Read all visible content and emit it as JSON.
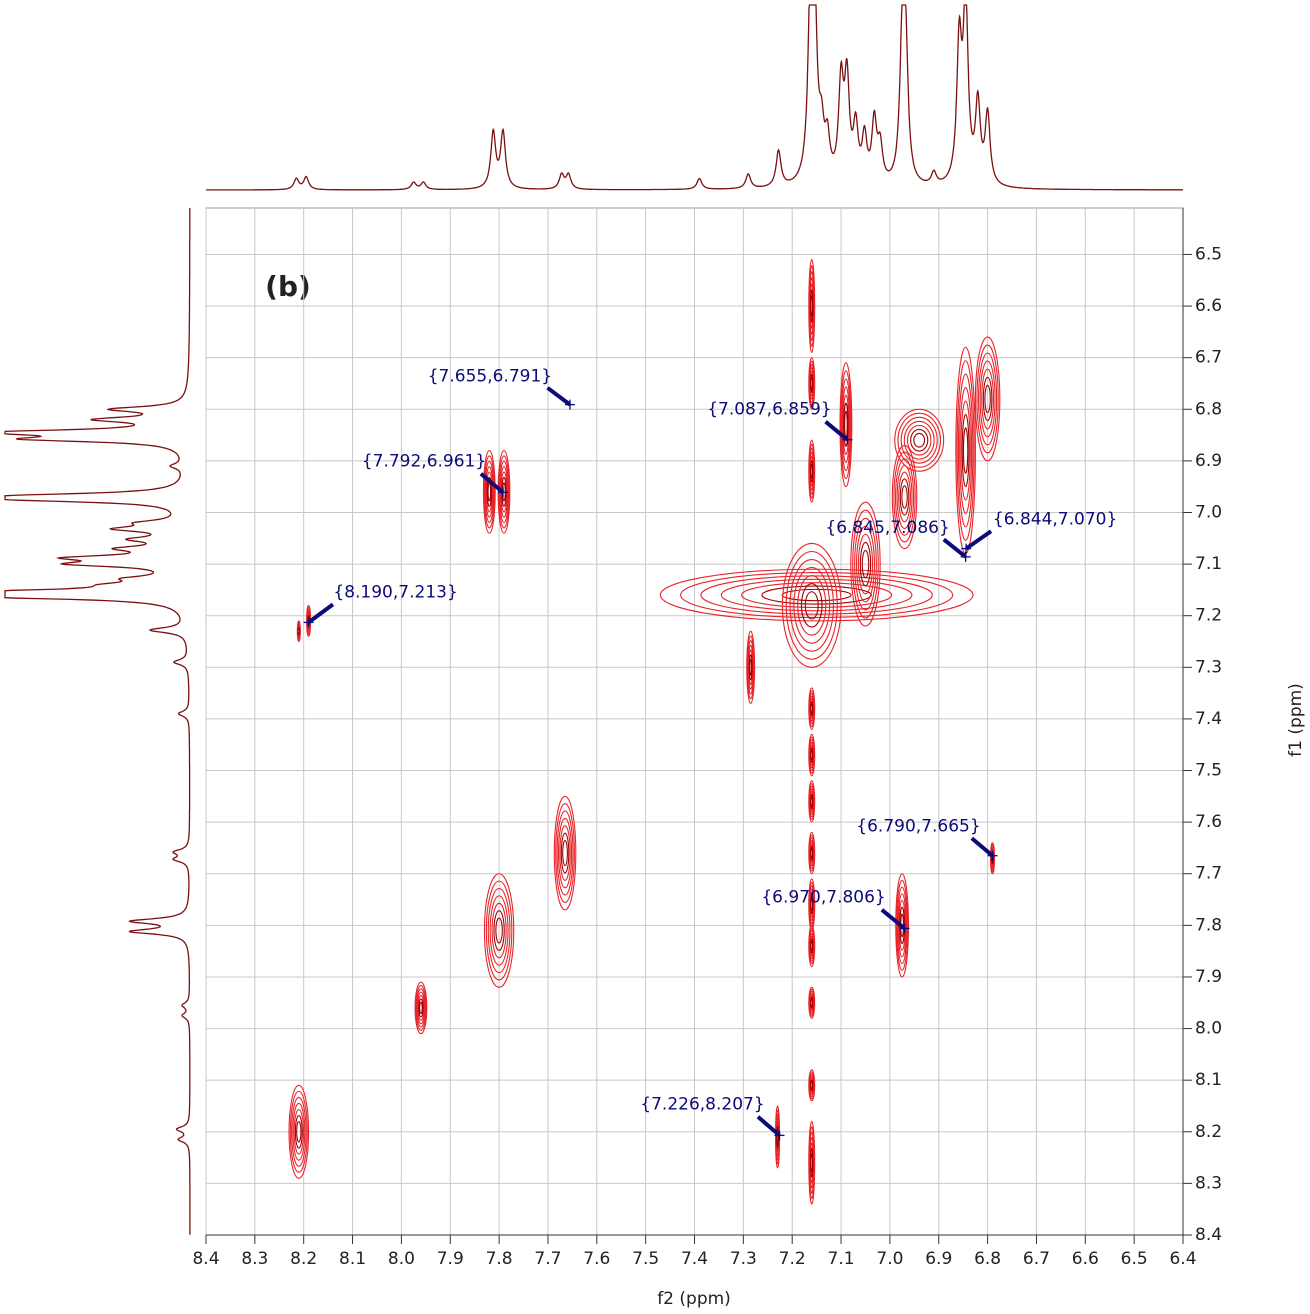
{
  "chart_data": {
    "type": "contour2d",
    "panel_label": "(b)",
    "x_label": "f2 (ppm)",
    "y_label": "f1 (ppm)",
    "xlim": [
      8.4,
      6.4
    ],
    "ylim": [
      6.41,
      8.4
    ],
    "xticks": [
      8.4,
      8.3,
      8.2,
      8.1,
      {
        "value": 8.0,
        "label": "8.0"
      },
      7.9,
      7.8,
      7.7,
      7.6,
      7.5,
      7.4,
      7.3,
      7.2,
      7.1,
      {
        "value": 7.0,
        "label": "7.0"
      },
      6.9,
      6.8,
      6.7,
      6.6,
      6.5,
      6.4
    ],
    "yticks": [
      6.5,
      6.6,
      6.7,
      6.8,
      6.9,
      {
        "value": 7.0,
        "label": "7.0"
      },
      7.1,
      7.2,
      7.3,
      7.4,
      7.5,
      7.6,
      7.7,
      7.8,
      7.9,
      {
        "value": 8.0,
        "label": "8.0"
      },
      8.1,
      8.2,
      8.3,
      8.4
    ],
    "grid": true,
    "contour_color": "#e8242a",
    "projection_color": "#7a1010",
    "annotation_color": "#0b0b7a",
    "projection": {
      "x": [
        8.215,
        8.195,
        7.975,
        7.955,
        7.812,
        7.792,
        7.672,
        7.658,
        7.39,
        7.29,
        7.228,
        7.162,
        7.155,
        7.14,
        7.128,
        7.1,
        7.088,
        7.07,
        7.052,
        7.032,
        7.02,
        6.975,
        6.968,
        6.91,
        6.858,
        6.845,
        6.82,
        6.8
      ],
      "intensity": [
        6,
        7,
        4,
        4,
        31,
        31,
        8,
        8,
        6,
        8,
        20,
        100,
        100,
        24,
        22,
        54,
        55,
        30,
        25,
        34,
        20,
        70,
        75,
        7,
        76,
        100,
        44,
        39
      ]
    },
    "contours": {
      "x": [
        7.82,
        7.79,
        8.19,
        8.21,
        8.21,
        7.8,
        7.665,
        7.96,
        6.975,
        6.79,
        7.23,
        7.15,
        7.16,
        6.845,
        6.8,
        7.09,
        6.97,
        7.05,
        6.94,
        7.285,
        7.16,
        7.16,
        7.16,
        7.16,
        7.16,
        7.16,
        7.16,
        7.16,
        7.16,
        7.16,
        7.16,
        7.16
      ],
      "y": [
        6.96,
        6.96,
        7.21,
        7.23,
        8.2,
        7.81,
        7.66,
        7.96,
        7.8,
        7.67,
        8.21,
        7.16,
        7.18,
        6.88,
        6.78,
        6.83,
        6.97,
        7.1,
        6.86,
        7.3,
        6.6,
        6.75,
        6.92,
        7.38,
        7.47,
        7.56,
        7.66,
        7.76,
        7.84,
        7.95,
        8.11,
        8.26
      ],
      "dx": [
        0.012,
        0.012,
        0.004,
        0.003,
        0.02,
        0.03,
        0.022,
        0.012,
        0.013,
        0.004,
        0.004,
        0.32,
        0.06,
        0.02,
        0.025,
        0.012,
        0.025,
        0.03,
        0.05,
        0.008,
        0.006,
        0.006,
        0.006,
        0.006,
        0.006,
        0.006,
        0.006,
        0.006,
        0.006,
        0.006,
        0.006,
        0.006
      ],
      "dy": [
        0.08,
        0.08,
        0.03,
        0.02,
        0.09,
        0.11,
        0.11,
        0.05,
        0.1,
        0.03,
        0.06,
        0.05,
        0.12,
        0.2,
        0.12,
        0.12,
        0.1,
        0.12,
        0.06,
        0.07,
        0.09,
        0.05,
        0.06,
        0.04,
        0.04,
        0.04,
        0.04,
        0.05,
        0.04,
        0.03,
        0.03,
        0.08
      ]
    },
    "peaks": {
      "x": [
        7.655,
        7.792,
        8.19,
        7.087,
        6.845,
        6.844,
        6.79,
        6.97,
        7.226
      ],
      "y": [
        6.791,
        6.961,
        7.213,
        6.859,
        7.086,
        7.07,
        7.665,
        7.806,
        8.207
      ],
      "labels": [
        "{7.655,6.791}",
        "{7.792,6.961}",
        "{8.190,7.213}",
        "{7.087,6.859}",
        "{6.845,7.086}",
        "{6.844,7.070}",
        "{6.790,7.665}",
        "{6.970,7.806}",
        "{7.226,8.207}"
      ]
    }
  }
}
